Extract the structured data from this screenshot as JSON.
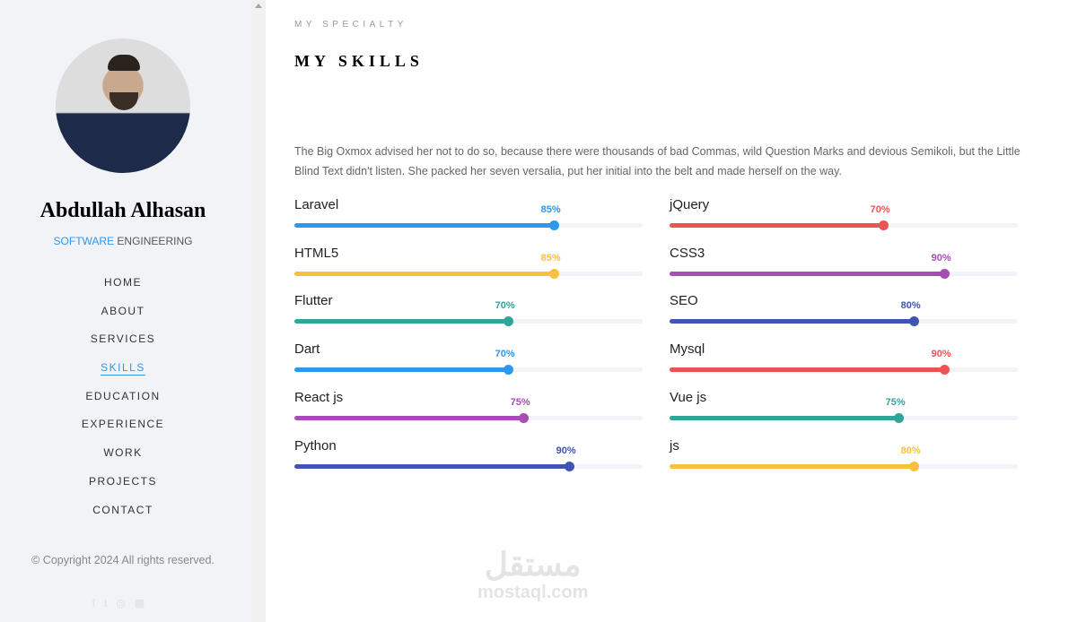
{
  "sidebar": {
    "name": "Abdullah Alhasan",
    "role_highlight": "SOFTWARE",
    "role_rest": " ENGINEERING",
    "nav": [
      {
        "label": "HOME"
      },
      {
        "label": "ABOUT"
      },
      {
        "label": "SERVICES"
      },
      {
        "label": "SKILLS",
        "active": true
      },
      {
        "label": "EDUCATION"
      },
      {
        "label": "EXPERIENCE"
      },
      {
        "label": "WORK"
      },
      {
        "label": "PROJECTS"
      },
      {
        "label": "CONTACT"
      }
    ],
    "copyright": "© Copyright 2024 All rights reserved.",
    "social_icons": [
      "facebook-icon",
      "twitter-icon",
      "instagram-icon",
      "linkedin-icon"
    ]
  },
  "main": {
    "eyebrow": "MY SPECIALTY",
    "title": "MY SKILLS",
    "description": "The Big Oxmox advised her not to do so, because there were thousands of bad Commas, wild Question Marks and devious Semikoli, but the Little Blind Text didn't listen. She packed her seven versalia, put her initial into the belt and made herself on the way.",
    "skills": [
      {
        "name": "Laravel",
        "percent": 85,
        "label": "85%",
        "color": "#2c98f0"
      },
      {
        "name": "jQuery",
        "percent": 70,
        "label": "70%",
        "color": "#ec5453"
      },
      {
        "name": "HTML5",
        "percent": 85,
        "label": "85%",
        "color": "#f9bf3f"
      },
      {
        "name": "CSS3",
        "percent": 90,
        "label": "90%",
        "color": "#a84cb8"
      },
      {
        "name": "Flutter",
        "percent": 70,
        "label": "70%",
        "color": "#2fa499"
      },
      {
        "name": "SEO",
        "percent": 80,
        "label": "80%",
        "color": "#4054b2"
      },
      {
        "name": "Dart",
        "percent": 70,
        "label": "70%",
        "color": "#2c98f0"
      },
      {
        "name": "Mysql",
        "percent": 90,
        "label": "90%",
        "color": "#ec5453"
      },
      {
        "name": "React js",
        "percent": 75,
        "label": "75%",
        "color": "#a84cb8"
      },
      {
        "name": "Vue js",
        "percent": 75,
        "label": "75%",
        "color": "#2fa499"
      },
      {
        "name": "Python",
        "percent": 90,
        "label": "90%",
        "color": "#4054b2"
      },
      {
        "name": "js",
        "percent": 80,
        "label": "80%",
        "color": "#f9bf3f"
      }
    ]
  },
  "watermark": {
    "arabic": "مستقل",
    "latin": "mostaql.com"
  }
}
